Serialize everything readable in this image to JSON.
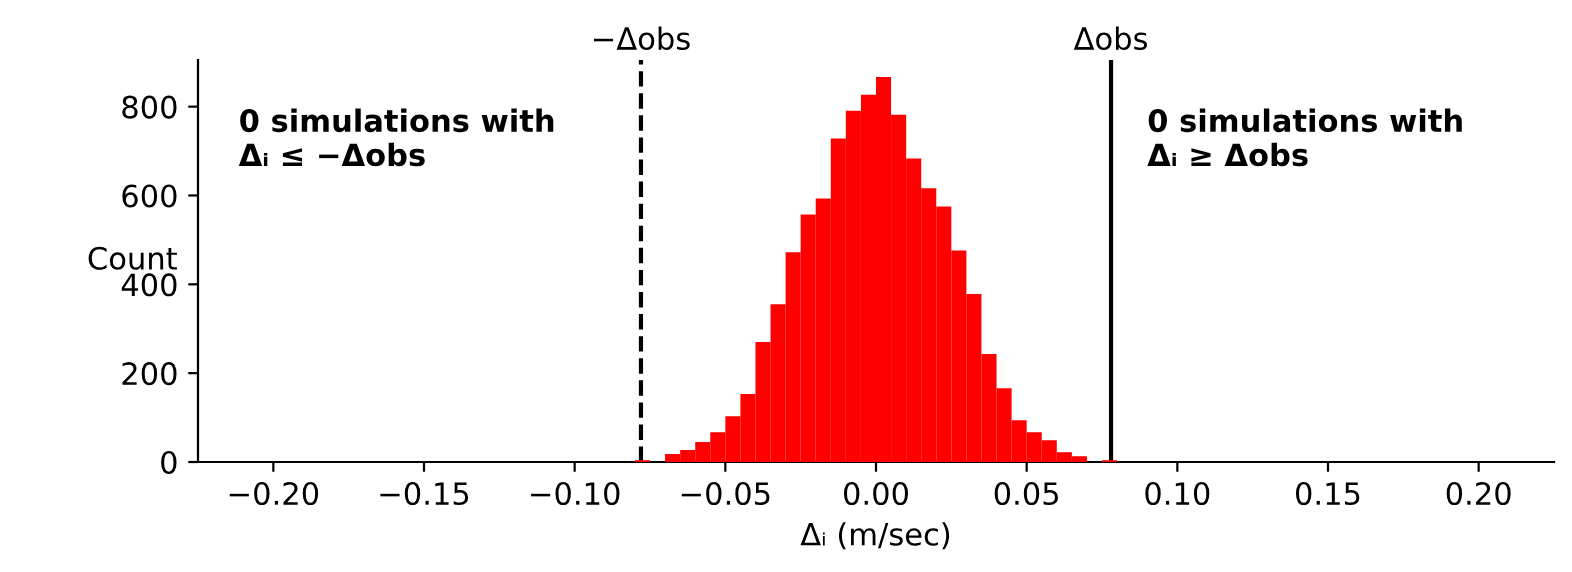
{
  "chart_data": {
    "type": "histogram",
    "xlabel": "Δᵢ (m/sec)",
    "ylabel": "Count",
    "color": "#ff0000",
    "bins": [
      -0.08,
      -0.075,
      -0.07,
      -0.065,
      -0.06,
      -0.055,
      -0.05,
      -0.045,
      -0.04,
      -0.035,
      -0.03,
      -0.025,
      -0.02,
      -0.015,
      -0.01,
      -0.005,
      0.0,
      0.005,
      0.01,
      0.015,
      0.02,
      0.025,
      0.03,
      0.035,
      0.04,
      0.045,
      0.05,
      0.055,
      0.06,
      0.065,
      0.07,
      0.075,
      0.08
    ],
    "values": [
      4,
      0,
      18,
      27,
      45,
      67,
      103,
      153,
      270,
      355,
      472,
      557,
      593,
      728,
      791,
      827,
      867,
      782,
      683,
      616,
      575,
      476,
      378,
      243,
      166,
      94,
      67,
      49,
      22,
      13,
      0,
      4
    ],
    "xlim": [
      -0.225,
      0.225
    ],
    "xticks": [
      {
        "value": -0.2,
        "label": "−0.20"
      },
      {
        "value": -0.15,
        "label": "−0.15"
      },
      {
        "value": -0.1,
        "label": "−0.10"
      },
      {
        "value": -0.05,
        "label": "−0.05"
      },
      {
        "value": 0,
        "label": "0.00"
      },
      {
        "value": 0.05,
        "label": "0.05"
      },
      {
        "value": 0.1,
        "label": "0.10"
      },
      {
        "value": 0.15,
        "label": "0.15"
      },
      {
        "value": 0.2,
        "label": "0.20"
      }
    ],
    "ylim": [
      0,
      905
    ],
    "yticks": [
      0,
      200,
      400,
      600,
      800
    ],
    "grid": false,
    "ref_lines": [
      {
        "axis": "x",
        "value": -0.078,
        "label": "−Δobs",
        "color": "#000000",
        "line_style": "dashed"
      },
      {
        "axis": "x",
        "value": 0.078,
        "label": "Δobs",
        "color": "#000000",
        "line_style": "solid"
      }
    ],
    "annotations": [
      "0 simulations with\nΔᵢ ≤ −Δobs",
      "0 simulations with\nΔᵢ ≥ Δobs"
    ]
  }
}
